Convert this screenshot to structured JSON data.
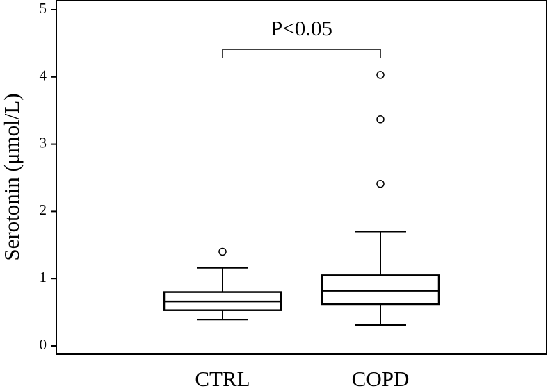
{
  "chart_data": {
    "type": "box",
    "y_label": "Serotonin (μmol/L)",
    "annotation": "P<0.05",
    "categories": [
      "CTRL",
      "COPD"
    ],
    "boxes": [
      {
        "min": 0.39,
        "q1": 0.53,
        "median": 0.66,
        "q3": 0.8,
        "max": 1.16,
        "outliers": [
          1.4
        ]
      },
      {
        "min": 0.31,
        "q1": 0.62,
        "median": 0.82,
        "q3": 1.05,
        "max": 1.7,
        "outliers": [
          2.41,
          3.37,
          4.03
        ]
      }
    ],
    "color": "#000000",
    "ylim": [
      0,
      5
    ],
    "yticks": [
      0,
      1,
      2,
      3,
      4,
      5
    ]
  }
}
